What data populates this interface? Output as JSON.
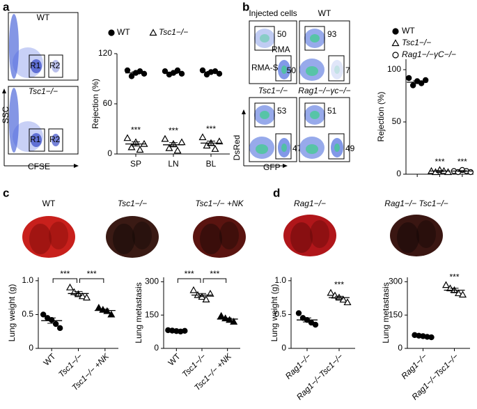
{
  "panel_labels": [
    "a",
    "b",
    "c",
    "d"
  ],
  "flow_a": {
    "plots": [
      {
        "title": "WT",
        "gates": [
          "R1",
          "R2"
        ]
      },
      {
        "title": "Tsc1−/−",
        "gates": [
          "R1",
          "R2"
        ]
      }
    ],
    "x_label": "CFSE",
    "y_label": "SSC"
  },
  "flow_b": {
    "plots": [
      {
        "title": "Injected cells",
        "gates": [
          50,
          50
        ],
        "populations": [
          "RMA",
          "RMA-S"
        ]
      },
      {
        "title": "WT",
        "gates": [
          93,
          7
        ]
      },
      {
        "title": "Tsc1−/−",
        "gates": [
          53,
          47
        ]
      },
      {
        "title": "Rag1−/−γc−/−",
        "gates": [
          51,
          49
        ]
      }
    ],
    "x_label": "GFP",
    "y_label": "DsRed"
  },
  "photos_c": [
    "WT",
    "Tsc1−/−",
    "Tsc1−/− +NK"
  ],
  "photos_d": [
    "Rag1−/−",
    "Rag1−/− Tsc1−/−"
  ],
  "chart_data": [
    {
      "type": "strip",
      "y_label": "Rejection (%)",
      "categories": [
        "SP",
        "LN",
        "BL"
      ],
      "ylim": [
        0,
        120
      ],
      "yticks": [
        0,
        60,
        120
      ],
      "legend": "top",
      "series": [
        {
          "name": "WT",
          "color": "#000000",
          "marker": "filled-circle",
          "values": [
            [
              100,
              93,
              97,
              99,
              96
            ],
            [
              99,
              95,
              97,
              100,
              96
            ],
            [
              100,
              95,
              98,
              99,
              96
            ]
          ],
          "means": [
            97,
            97,
            98
          ],
          "errors": [
            1.3,
            0.9,
            0.9
          ]
        },
        {
          "name": "Tsc1−/−",
          "color": "#000000",
          "marker": "open-triangle",
          "values": [
            [
              19,
              8,
              14,
              5,
              12
            ],
            [
              18,
              7,
              12,
              4,
              14
            ],
            [
              20,
              10,
              13,
              6,
              15
            ]
          ],
          "means": [
            12,
            11,
            13
          ],
          "errors": [
            2.5,
            2.5,
            2.4
          ],
          "annotations": [
            "***",
            "***",
            "***"
          ]
        }
      ]
    },
    {
      "type": "strip",
      "y_label": "Rejection (%)",
      "categories": [
        null,
        null,
        null
      ],
      "ylim": [
        0,
        110
      ],
      "yticks": [
        0,
        50,
        100
      ],
      "legend": "right",
      "series": [
        {
          "name": "WT",
          "color": "#000000",
          "marker": "filled-circle",
          "values": [
            [
              92,
              85,
              89,
              87,
              90
            ],
            null,
            null
          ],
          "means": [
            88,
            null,
            null
          ],
          "errors": [
            1.3,
            null,
            null
          ]
        },
        {
          "name": "Tsc1−/−",
          "color": "#000000",
          "marker": "open-triangle",
          "values": [
            null,
            [
              3,
              2,
              4,
              3,
              2
            ],
            null
          ],
          "means": [
            null,
            3,
            null
          ],
          "errors": [
            null,
            0.4,
            null
          ],
          "annotations": [
            null,
            "***",
            null
          ]
        },
        {
          "name": "Rag1−/−γC−/−",
          "color": "#000000",
          "marker": "open-circle",
          "values": [
            null,
            null,
            [
              3,
              2,
              4,
              3,
              2
            ]
          ],
          "means": [
            null,
            null,
            3
          ],
          "errors": [
            null,
            null,
            0.4
          ],
          "annotations": [
            null,
            null,
            "***"
          ]
        }
      ]
    },
    {
      "type": "strip",
      "y_label": "Lung weight (g)",
      "categories": [
        "WT",
        "Tsc1−/−",
        "Tsc1−/− +NK"
      ],
      "ylim": [
        0,
        1.05
      ],
      "yticks": [
        0,
        0.5,
        {
          "value": 1,
          "label": "1.0"
        }
      ],
      "color": "#000000",
      "markers": [
        "filled-circle",
        "open-triangle",
        "filled-triangle"
      ],
      "values": [
        [
          0.5,
          0.45,
          0.42,
          0.36,
          0.3
        ],
        [
          0.9,
          0.83,
          0.8,
          0.77,
          0.75
        ],
        [
          0.6,
          0.57,
          0.55,
          0.5
        ]
      ],
      "means": [
        0.41,
        0.81,
        0.56
      ],
      "errors": [
        0.04,
        0.03,
        0.02
      ],
      "brackets": [
        "***",
        "***"
      ]
    },
    {
      "type": "strip",
      "y_label": "Lung metastasis",
      "categories": [
        "WT",
        "Tsc1−/−",
        "Tsc1−/− +NK"
      ],
      "ylim": [
        0,
        320
      ],
      "yticks": [
        0,
        150,
        300
      ],
      "color": "#000000",
      "markers": [
        "filled-circle",
        "open-triangle",
        "filled-triangle"
      ],
      "values": [
        [
          82,
          80,
          78,
          76,
          79
        ],
        [
          262,
          240,
          232,
          220,
          246
        ],
        [
          146,
          135,
          128,
          120
        ]
      ],
      "means": [
        79,
        240,
        132
      ],
      "errors": [
        1.2,
        7,
        5
      ],
      "brackets": [
        "***",
        "***"
      ]
    },
    {
      "type": "strip",
      "y_label": "Lung weight (g)",
      "categories": [
        "Rag1−/−",
        "Rag1−/−Tsc1−/−"
      ],
      "ylim": [
        0,
        1.05
      ],
      "yticks": [
        0,
        0.5,
        {
          "value": 1,
          "label": "1.0"
        }
      ],
      "color": "#000000",
      "markers": [
        "filled-circle",
        "open-triangle"
      ],
      "values": [
        [
          0.52,
          0.45,
          0.42,
          0.38,
          0.35
        ],
        [
          0.82,
          0.78,
          0.75,
          0.72,
          0.68
        ]
      ],
      "means": [
        0.42,
        0.75
      ],
      "errors": [
        0.03,
        0.02
      ],
      "annotations": [
        null,
        "***"
      ]
    },
    {
      "type": "strip",
      "y_label": "Lung metastasis",
      "categories": [
        "Rag1−/−",
        "Rag1−/−Tsc1−/−"
      ],
      "ylim": [
        0,
        320
      ],
      "yticks": [
        0,
        150,
        300
      ],
      "color": "#000000",
      "markers": [
        "filled-circle",
        "open-triangle"
      ],
      "values": [
        [
          60,
          57,
          55,
          52,
          50
        ],
        [
          285,
          270,
          262,
          248,
          242
        ]
      ],
      "means": [
        55,
        262
      ],
      "errors": [
        2,
        9
      ],
      "annotations": [
        null,
        "***"
      ]
    }
  ]
}
